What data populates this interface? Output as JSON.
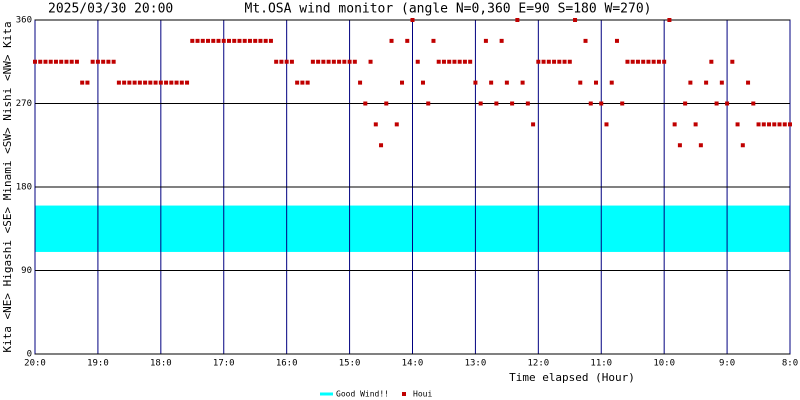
{
  "chart_data": {
    "type": "scatter",
    "timestamp": "2025/03/30 20:00",
    "title": "Mt.OSA wind monitor (angle N=0,360 E=90 S=180 W=270)",
    "y_label": "Kita <NE> Higashi <SE> Minami <SW> Nishi <NW> Kita",
    "x_label": "Time elapsed (Hour)",
    "xlim": [
      0,
      720
    ],
    "xticks": [
      {
        "value": 0,
        "label": "20:0"
      },
      {
        "value": 60,
        "label": "19:0"
      },
      {
        "value": 120,
        "label": "18:0"
      },
      {
        "value": 180,
        "label": "17:0"
      },
      {
        "value": 240,
        "label": "16:0"
      },
      {
        "value": 300,
        "label": "15:0"
      },
      {
        "value": 360,
        "label": "14:0"
      },
      {
        "value": 420,
        "label": "13:0"
      },
      {
        "value": 480,
        "label": "12:0"
      },
      {
        "value": 540,
        "label": "11:0"
      },
      {
        "value": 600,
        "label": "10:0"
      },
      {
        "value": 660,
        "label": "9:0"
      },
      {
        "value": 720,
        "label": "8:0"
      }
    ],
    "ylim": [
      0,
      360
    ],
    "yticks": [
      0,
      90,
      180,
      270,
      360
    ],
    "grid": true,
    "band": {
      "name": "Good Wind!!",
      "color": "#00ffff",
      "range": [
        110,
        160
      ]
    },
    "series": [
      {
        "name": "Houi",
        "color": "#c00000",
        "x": [
          0,
          5,
          10,
          15,
          20,
          25,
          30,
          35,
          40,
          45,
          50,
          55,
          60,
          65,
          70,
          75,
          80,
          85,
          90,
          95,
          100,
          105,
          110,
          115,
          120,
          125,
          130,
          135,
          140,
          145,
          150,
          155,
          160,
          165,
          170,
          175,
          180,
          185,
          190,
          195,
          200,
          205,
          210,
          215,
          220,
          225,
          230,
          235,
          240,
          245,
          250,
          255,
          260,
          265,
          270,
          275,
          280,
          285,
          290,
          295,
          300,
          305,
          310,
          315,
          320,
          325,
          330,
          335,
          340,
          345,
          350,
          355,
          360,
          365,
          370,
          375,
          380,
          385,
          390,
          395,
          400,
          405,
          410,
          415,
          420,
          425,
          430,
          435,
          440,
          445,
          450,
          455,
          460,
          465,
          470,
          475,
          480,
          485,
          490,
          495,
          500,
          505,
          510,
          515,
          520,
          525,
          530,
          535,
          540,
          545,
          550,
          555,
          560,
          565,
          570,
          575,
          580,
          585,
          590,
          595,
          600,
          605,
          610,
          615,
          620,
          625,
          630,
          635,
          640,
          645,
          650,
          655,
          660,
          665,
          670,
          675,
          680,
          685,
          690,
          695,
          700,
          705,
          710,
          715,
          720
        ],
        "values": [
          315,
          315,
          315,
          315,
          315,
          315,
          315,
          315,
          315,
          292.5,
          292.5,
          315,
          315,
          315,
          315,
          315,
          292.5,
          292.5,
          292.5,
          292.5,
          292.5,
          292.5,
          292.5,
          292.5,
          292.5,
          292.5,
          292.5,
          292.5,
          292.5,
          292.5,
          337.5,
          337.5,
          337.5,
          337.5,
          337.5,
          337.5,
          337.5,
          337.5,
          337.5,
          337.5,
          337.5,
          337.5,
          337.5,
          337.5,
          337.5,
          337.5,
          315,
          315,
          315,
          315,
          292.5,
          292.5,
          292.5,
          315,
          315,
          315,
          315,
          315,
          315,
          315,
          315,
          315,
          292.5,
          270,
          315,
          247.5,
          225,
          270,
          337.5,
          247.5,
          292.5,
          337.5,
          360,
          315,
          292.5,
          270,
          337.5,
          315,
          315,
          315,
          315,
          315,
          315,
          315,
          292.5,
          270,
          337.5,
          292.5,
          270,
          337.5,
          292.5,
          270,
          360,
          292.5,
          270,
          247.5,
          315,
          315,
          315,
          315,
          315,
          315,
          315,
          360,
          292.5,
          337.5,
          270,
          292.5,
          270,
          247.5,
          292.5,
          337.5,
          270,
          315,
          315,
          315,
          315,
          315,
          315,
          315,
          315,
          360,
          247.5,
          225,
          270,
          292.5,
          247.5,
          225,
          292.5,
          315,
          270,
          292.5,
          270,
          315,
          247.5,
          225,
          292.5,
          270,
          247.5,
          247.5,
          247.5,
          247.5,
          247.5,
          247.5,
          247.5
        ]
      }
    ]
  }
}
